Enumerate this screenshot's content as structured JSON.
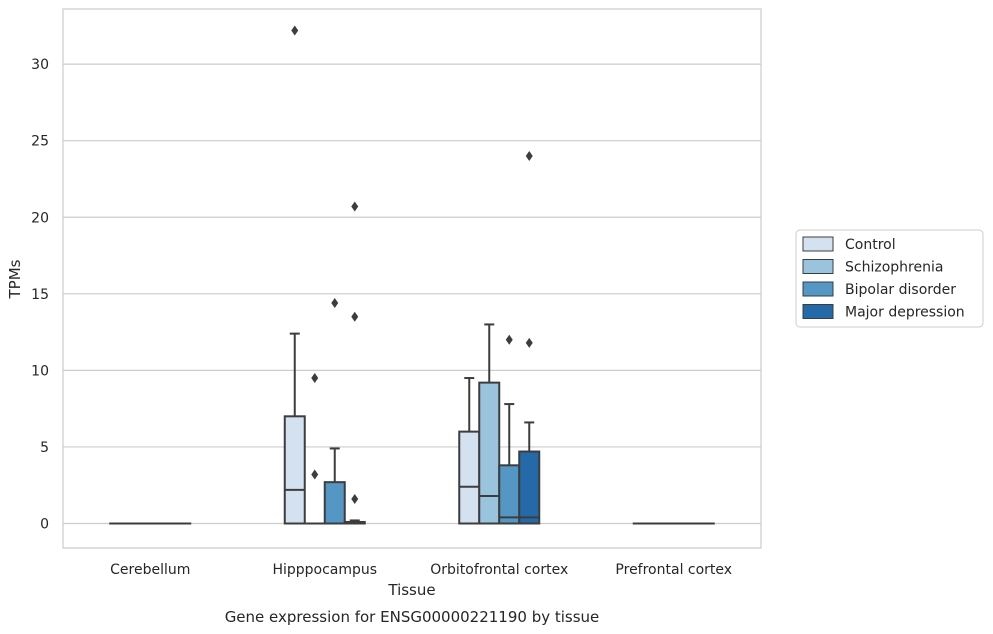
{
  "chart_data": {
    "type": "box",
    "caption": "Gene expression for ENSG00000221190 by tissue",
    "xlabel": "Tissue",
    "ylabel": "TPMs",
    "ylim": [
      -1.6,
      33.6
    ],
    "yticks": [
      0,
      5,
      10,
      15,
      20,
      25,
      30
    ],
    "grid": true,
    "legend_position": "right",
    "categories": [
      "Cerebellum",
      "Hipppocampus",
      "Orbitofrontal cortex",
      "Prefrontal cortex"
    ],
    "series": [
      {
        "name": "Control",
        "color": "#d3e1f0",
        "boxes": [
          {
            "category": "Cerebellum",
            "whislo": 0,
            "q1": 0,
            "med": 0,
            "q3": 0,
            "whishi": 0,
            "fliers": []
          },
          {
            "category": "Hipppocampus",
            "whislo": 0,
            "q1": 0,
            "med": 2.2,
            "q3": 7.0,
            "whishi": 12.4,
            "fliers": [
              32.2
            ]
          },
          {
            "category": "Orbitofrontal cortex",
            "whislo": 0,
            "q1": 0,
            "med": 2.4,
            "q3": 6.0,
            "whishi": 9.5,
            "fliers": []
          },
          {
            "category": "Prefrontal cortex",
            "whislo": 0,
            "q1": 0,
            "med": 0,
            "q3": 0,
            "whishi": 0,
            "fliers": []
          }
        ]
      },
      {
        "name": "Schizophrenia",
        "color": "#9ac3de",
        "boxes": [
          {
            "category": "Cerebellum",
            "whislo": 0,
            "q1": 0,
            "med": 0,
            "q3": 0,
            "whishi": 0,
            "fliers": []
          },
          {
            "category": "Hipppocampus",
            "whislo": 0,
            "q1": 0,
            "med": 0,
            "q3": 0,
            "whishi": 0,
            "fliers": [
              9.5,
              3.2
            ]
          },
          {
            "category": "Orbitofrontal cortex",
            "whislo": 0,
            "q1": 0,
            "med": 1.8,
            "q3": 9.2,
            "whishi": 13.0,
            "fliers": []
          },
          {
            "category": "Prefrontal cortex",
            "whislo": 0,
            "q1": 0,
            "med": 0,
            "q3": 0,
            "whishi": 0,
            "fliers": []
          }
        ]
      },
      {
        "name": "Bipolar disorder",
        "color": "#5496c4",
        "boxes": [
          {
            "category": "Cerebellum",
            "whislo": 0,
            "q1": 0,
            "med": 0,
            "q3": 0,
            "whishi": 0,
            "fliers": []
          },
          {
            "category": "Hipppocampus",
            "whislo": 0,
            "q1": 0,
            "med": 0,
            "q3": 2.7,
            "whishi": 4.9,
            "fliers": [
              14.4
            ]
          },
          {
            "category": "Orbitofrontal cortex",
            "whislo": 0,
            "q1": 0,
            "med": 0.4,
            "q3": 3.8,
            "whishi": 7.8,
            "fliers": [
              12.0
            ]
          },
          {
            "category": "Prefrontal cortex",
            "whislo": 0,
            "q1": 0,
            "med": 0,
            "q3": 0,
            "whishi": 0,
            "fliers": []
          }
        ]
      },
      {
        "name": "Major depression",
        "color": "#2469a8",
        "boxes": [
          {
            "category": "Cerebellum",
            "whislo": 0,
            "q1": 0,
            "med": 0,
            "q3": 0,
            "whishi": 0,
            "fliers": []
          },
          {
            "category": "Hipppocampus",
            "whislo": 0,
            "q1": 0,
            "med": 0,
            "q3": 0.1,
            "whishi": 0.2,
            "fliers": [
              20.7,
              13.5,
              1.6
            ]
          },
          {
            "category": "Orbitofrontal cortex",
            "whislo": 0,
            "q1": 0,
            "med": 0.4,
            "q3": 4.7,
            "whishi": 6.6,
            "fliers": [
              24.0,
              11.8
            ]
          },
          {
            "category": "Prefrontal cortex",
            "whislo": 0,
            "q1": 0,
            "med": 0,
            "q3": 0,
            "whishi": 0,
            "fliers": []
          }
        ]
      }
    ]
  }
}
